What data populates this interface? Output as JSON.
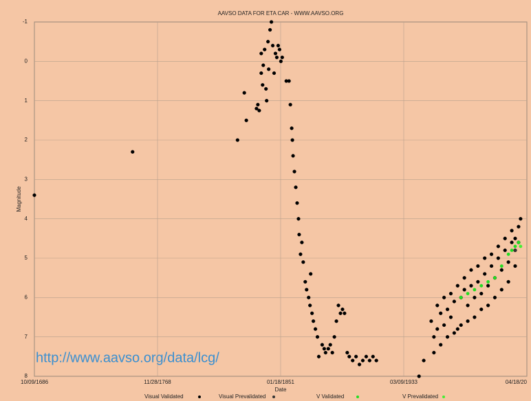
{
  "chart_data": {
    "type": "scatter",
    "title": "AAVSO DATA FOR ETA CAR - WWW.AAVSO.ORG",
    "x_label": "Date",
    "y_label": "Magnitude",
    "annotation": "http://www.aavso.org/data/lcg/",
    "xlim": [
      2337141,
      2457141
    ],
    "xticks": [
      {
        "value": 2337141,
        "label": "10/09/1686"
      },
      {
        "value": 2367141,
        "label": "11/28/1768"
      },
      {
        "value": 2397141,
        "label": "01/18/1851"
      },
      {
        "value": 2427141,
        "label": "03/09/1933"
      },
      {
        "value": 2457141,
        "label": "04/18/20"
      }
    ],
    "ylim": [
      8,
      -1
    ],
    "yticks": [
      -1,
      0,
      1,
      2,
      3,
      4,
      5,
      6,
      7,
      8
    ],
    "y_inverted": true,
    "grid": true,
    "legend": "bottom",
    "series": [
      {
        "name": "Visual Validated",
        "color": "#000000",
        "x": [
          2337141,
          2361066,
          2386641,
          2388291,
          2388786,
          2391261,
          2391591,
          2391921,
          2392416,
          2392416,
          2392746,
          2392911,
          2393241,
          2393571,
          2393736,
          2394066,
          2394231,
          2394561,
          2394891,
          2395221,
          2395551,
          2395881,
          2396211,
          2396541,
          2396871,
          2397201,
          2397531,
          2398521,
          2399181,
          2399511,
          2399841,
          2400006,
          2400171,
          2400501,
          2400831,
          2401161,
          2401491,
          2401656,
          2401986,
          2402316,
          2402646,
          2403141,
          2403471,
          2403966,
          2404296,
          2404461,
          2404791,
          2405121,
          2405616,
          2406111,
          2406441,
          2407266,
          2407761,
          2408091,
          2408751,
          2409246,
          2409741,
          2410236,
          2410731,
          2411226,
          2411721,
          2412216,
          2412711,
          2413371,
          2413866,
          2414691,
          2415516,
          2416341,
          2417166,
          2417991,
          2418816,
          2419641,
          2420466,
          2430861,
          2432016,
          2433831,
          2434491,
          2435316,
          2436141,
          2436966,
          2437791,
          2438616,
          2439441,
          2440266,
          2441091,
          2441916,
          2442741,
          2443566,
          2444391,
          2445216,
          2446041,
          2446866,
          2447691,
          2448516,
          2449341,
          2450166,
          2450991,
          2451816,
          2452641,
          2453466,
          2454291,
          2455116,
          2455611,
          2434491,
          2436141,
          2437791,
          2439441,
          2441091,
          2442741,
          2444391,
          2446041,
          2447691,
          2449341,
          2450991,
          2452641,
          2454291,
          2435316,
          2436966,
          2438616,
          2440266,
          2441916,
          2443566,
          2445216,
          2446866,
          2448516,
          2450166,
          2451816,
          2453466
        ],
        "y": [
          3.4,
          2.3,
          2.0,
          0.8,
          1.5,
          1.2,
          1.1,
          1.25,
          0.3,
          -0.2,
          0.6,
          0.1,
          -0.3,
          0.7,
          1.0,
          -0.5,
          0.2,
          -0.8,
          -1.0,
          -0.4,
          0.3,
          -0.2,
          -0.1,
          -0.4,
          -0.3,
          0.0,
          -0.1,
          0.5,
          0.5,
          1.1,
          1.7,
          2.0,
          2.4,
          2.8,
          3.2,
          3.6,
          4.0,
          4.4,
          4.9,
          4.6,
          5.1,
          5.6,
          5.8,
          6.0,
          6.2,
          5.4,
          6.4,
          6.6,
          6.8,
          7.0,
          7.5,
          7.2,
          7.3,
          7.4,
          7.3,
          7.2,
          7.4,
          7.0,
          6.6,
          6.2,
          6.4,
          6.3,
          6.4,
          7.4,
          7.5,
          7.6,
          7.5,
          7.7,
          7.6,
          7.5,
          7.6,
          7.5,
          7.6,
          8.0,
          7.6,
          6.6,
          7.0,
          6.8,
          6.4,
          6.7,
          6.3,
          6.5,
          6.1,
          6.8,
          6.0,
          5.8,
          6.2,
          5.7,
          6.0,
          5.6,
          5.9,
          5.4,
          5.7,
          5.2,
          5.5,
          5.0,
          5.3,
          4.8,
          5.1,
          4.6,
          4.5,
          4.2,
          4.0,
          7.4,
          7.2,
          7.0,
          6.9,
          6.7,
          6.6,
          6.5,
          6.3,
          6.2,
          6.0,
          5.8,
          5.6,
          5.2,
          6.2,
          6.0,
          5.9,
          5.7,
          5.5,
          5.3,
          5.2,
          5.0,
          4.9,
          4.7,
          4.5,
          4.3
        ]
      },
      {
        "name": "Visual Prevalidated",
        "color": "#333333",
        "x": [
          2454291,
          2455116
        ],
        "y": [
          4.8,
          4.6
        ]
      },
      {
        "name": "V Validated",
        "color": "#22dd22",
        "x": [
          2441091,
          2442741,
          2444391,
          2446041,
          2447691,
          2449341,
          2450991,
          2452641,
          2453466,
          2454291,
          2455116
        ],
        "y": [
          6.0,
          5.9,
          5.8,
          5.7,
          5.6,
          5.5,
          5.2,
          4.9,
          4.8,
          4.7,
          4.6
        ]
      },
      {
        "name": "V Prevalidated",
        "color": "#44ee33",
        "x": [
          2455611
        ],
        "y": [
          4.7
        ]
      }
    ]
  }
}
